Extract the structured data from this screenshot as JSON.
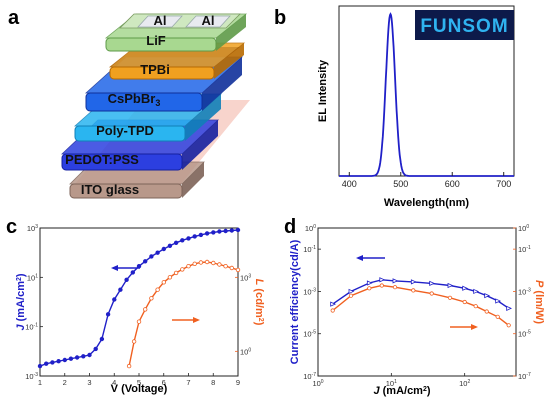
{
  "panels": {
    "a": "a",
    "b": "b",
    "c": "c",
    "d": "d"
  },
  "panel_a": {
    "layers": [
      {
        "label": "ITO glass",
        "color": "#b8988a",
        "edge": "#7d6358"
      },
      {
        "label": "PEDOT:PSS",
        "color": "#2c3fe0",
        "edge": "#1520a0"
      },
      {
        "label": "Poly-TPD",
        "color": "#2ab5f0",
        "edge": "#1080b8"
      },
      {
        "label": "CsPbBr3",
        "label_main": "CsPbBr",
        "label_sub": "3",
        "color": "#2166e8",
        "edge": "#10309a"
      },
      {
        "label": "TPBi",
        "color": "#f0a020",
        "edge": "#b86a00"
      },
      {
        "label": "LiF",
        "color": "#a8d890",
        "edge": "#5e9a48"
      }
    ],
    "electrodes": [
      "Al",
      "Al"
    ],
    "colors": {
      "ito_backdrop": "#f8d4cc",
      "tpbi_backing": "#0c1a70",
      "electrode_pad": "#e8eaf0",
      "electrode_base": "#cfe8c0"
    }
  },
  "panel_b": {
    "logo": "FUNSOM",
    "logo_colors": {
      "bg": "#0d1a4a",
      "text": "#2fb3f0"
    },
    "chart_data": {
      "type": "line",
      "xlabel": "Wavelength(nm)",
      "ylabel": "EL Intensity",
      "xlim": [
        380,
        720
      ],
      "ylim": [
        0,
        1.05
      ],
      "xticks": [
        400,
        500,
        600,
        700
      ],
      "peak": 480,
      "fwhm": 21,
      "series": [
        {
          "color": "#2020c8"
        }
      ]
    }
  },
  "panel_c": {
    "chart_data": {
      "type": "line",
      "xlabel": "V (Voltage)",
      "ylabel_left": {
        "main": "J",
        "unit_main": " (mA/cm",
        "unit_sup": "2",
        "unit_end": ")"
      },
      "ylabel_right": {
        "main": "L",
        "unit_main": " (cd/m",
        "unit_sup": "2",
        "unit_end": ")"
      },
      "xlim": [
        1,
        9
      ],
      "xticks": [
        1,
        2,
        3,
        4,
        5,
        6,
        7,
        8,
        9
      ],
      "left_log_range": [
        -3,
        3
      ],
      "left_ticks": [
        {
          "mant": "10",
          "exp": "-3",
          "e": -3
        },
        {
          "mant": "10",
          "exp": "-1",
          "e": -1
        },
        {
          "mant": "10",
          "exp": "1",
          "e": 1
        },
        {
          "mant": "10",
          "exp": "3",
          "e": 3
        }
      ],
      "right_log_range": [
        -1,
        5
      ],
      "right_ticks": [
        {
          "mant": "10",
          "exp": "0",
          "e": 0
        },
        {
          "mant": "10",
          "exp": "3",
          "e": 3
        }
      ],
      "series": [
        {
          "axis": "left",
          "color": "#2020c8",
          "x": [
            1,
            1.25,
            1.5,
            1.75,
            2,
            2.25,
            2.5,
            2.75,
            3,
            3.25,
            3.5,
            3.75,
            4,
            4.25,
            4.5,
            4.75,
            5,
            5.25,
            5.5,
            5.75,
            6,
            6.25,
            6.5,
            6.75,
            7,
            7.25,
            7.5,
            7.75,
            8,
            8.25,
            8.5,
            8.75,
            9
          ],
          "y": [
            -2.6,
            -2.5,
            -2.45,
            -2.4,
            -2.35,
            -2.3,
            -2.25,
            -2.2,
            -2.15,
            -1.9,
            -1.5,
            -0.5,
            0.1,
            0.5,
            0.9,
            1.2,
            1.45,
            1.65,
            1.85,
            2.0,
            2.15,
            2.28,
            2.4,
            2.5,
            2.58,
            2.66,
            2.72,
            2.78,
            2.82,
            2.86,
            2.88,
            2.9,
            2.92
          ]
        },
        {
          "axis": "right",
          "color": "#f06020",
          "x": [
            4.6,
            4.8,
            5.0,
            5.25,
            5.5,
            5.75,
            6.0,
            6.25,
            6.5,
            6.75,
            7.0,
            7.25,
            7.5,
            7.75,
            8.0,
            8.25,
            8.5,
            8.75,
            9.0
          ],
          "y": [
            -0.6,
            0.4,
            1.2,
            1.7,
            2.15,
            2.5,
            2.8,
            3.0,
            3.18,
            3.32,
            3.45,
            3.55,
            3.6,
            3.62,
            3.58,
            3.52,
            3.45,
            3.38,
            3.3
          ]
        }
      ]
    }
  },
  "panel_d": {
    "chart_data": {
      "type": "line",
      "xlabel": {
        "main": "J",
        "unit_main": " (mA/cm",
        "unit_sup": "2",
        "unit_end": ")"
      },
      "ylabel_left": "Current efficiency(cd/A)",
      "ylabel_right": {
        "main": "P",
        "unit": " (lm/W)"
      },
      "x_log_range": [
        0,
        2.7
      ],
      "xticks": [
        {
          "mant": "10",
          "exp": "0",
          "e": 0
        },
        {
          "mant": "10",
          "exp": "1",
          "e": 1
        },
        {
          "mant": "10",
          "exp": "2",
          "e": 2
        }
      ],
      "left_log_range": [
        -7,
        0
      ],
      "left_ticks": [
        {
          "mant": "10",
          "exp": "-7",
          "e": -7
        },
        {
          "mant": "10",
          "exp": "-5",
          "e": -5
        },
        {
          "mant": "10",
          "exp": "-3",
          "e": -3
        },
        {
          "mant": "10",
          "exp": "-1",
          "e": -1
        },
        {
          "mant": "10",
          "exp": "0",
          "e": 0
        }
      ],
      "right_log_range": [
        -7,
        0
      ],
      "right_ticks": [
        {
          "mant": "10",
          "exp": "-7",
          "e": -7
        },
        {
          "mant": "10",
          "exp": "-5",
          "e": -5
        },
        {
          "mant": "10",
          "exp": "-3",
          "e": -3
        },
        {
          "mant": "10",
          "exp": "-1",
          "e": -1
        },
        {
          "mant": "10",
          "exp": "0",
          "e": 0
        }
      ],
      "series": [
        {
          "axis": "left",
          "color": "#2020c8",
          "x": [
            0.2,
            0.45,
            0.7,
            0.87,
            1.05,
            1.3,
            1.55,
            1.8,
            2.0,
            2.15,
            2.3,
            2.45,
            2.6
          ],
          "y": [
            -3.6,
            -3.0,
            -2.6,
            -2.45,
            -2.5,
            -2.55,
            -2.62,
            -2.72,
            -2.85,
            -3.0,
            -3.2,
            -3.45,
            -3.8
          ]
        },
        {
          "axis": "right",
          "color": "#f06020",
          "x": [
            0.2,
            0.45,
            0.7,
            0.87,
            1.05,
            1.3,
            1.55,
            1.8,
            2.0,
            2.15,
            2.3,
            2.45,
            2.6
          ],
          "y": [
            -3.9,
            -3.2,
            -2.85,
            -2.72,
            -2.8,
            -2.95,
            -3.1,
            -3.3,
            -3.5,
            -3.7,
            -3.95,
            -4.2,
            -4.6
          ]
        }
      ]
    }
  }
}
